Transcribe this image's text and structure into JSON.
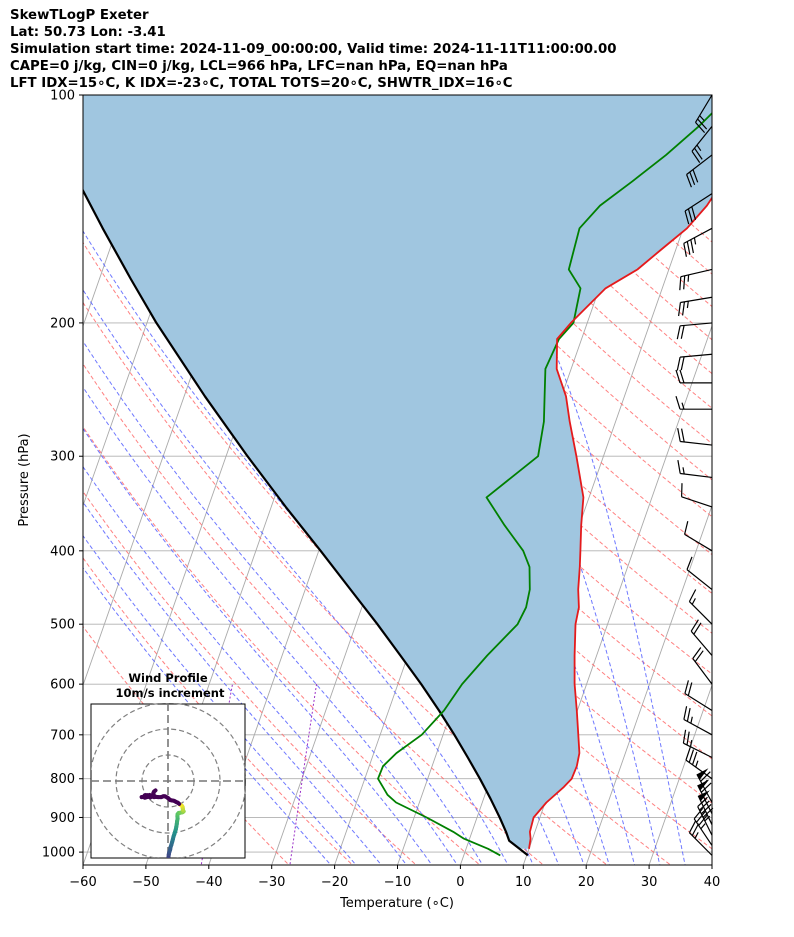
{
  "header": {
    "line1": "SkewTLogP Exeter",
    "line2": "Lat: 50.73   Lon: -3.41",
    "line3": "Simulation start time: 2024-11-09_00:00:00, Valid time: 2024-11-11T11:00:00.00",
    "line4": "CAPE=0 j/kg, CIN=0 j/kg, LCL=966 hPa, LFC=nan hPa, EQ=nan hPa",
    "line5": "LFT IDX=15∘C, K IDX=-23∘C, TOTAL TOTS=20∘C, SHWTR_IDX=16∘C"
  },
  "colors": {
    "temperature": "#e41a1c",
    "dewpoint": "#008000",
    "parcel": "#000000",
    "cape_fill": "#a0c6e0",
    "dry_adiabat": "#ff6b6b",
    "moist_adiabat": "#5560ff",
    "mixing_ratio": "#9b30c8",
    "isotherm": "#aaaaaa"
  },
  "chart_data": {
    "type": "line",
    "title": "SkewTLogP Exeter",
    "xlabel": "Temperature (∘C)",
    "ylabel": "Pressure (hPa)",
    "xlim": [
      -60,
      40
    ],
    "ylim": [
      1040,
      100
    ],
    "x_ticks": [
      "−60",
      "−50",
      "−40",
      "−30",
      "−20",
      "−10",
      "0",
      "10",
      "20",
      "30",
      "40"
    ],
    "x_tick_values": [
      -60,
      -50,
      -40,
      -30,
      -20,
      -10,
      0,
      10,
      20,
      30,
      40
    ],
    "y_ticks": [
      "100",
      "200",
      "300",
      "400",
      "500",
      "600",
      "700",
      "800",
      "900",
      "1000"
    ],
    "y_tick_values": [
      100,
      200,
      300,
      400,
      500,
      600,
      700,
      800,
      900,
      1000
    ],
    "grid": true,
    "series": [
      {
        "name": "Temperature",
        "p": [
          990,
          960,
          940,
          900,
          860,
          820,
          800,
          770,
          740,
          700,
          650,
          600,
          550,
          500,
          475,
          450,
          420,
          400,
          370,
          340,
          300,
          270,
          250,
          230,
          210,
          200,
          180,
          170,
          160,
          150,
          140,
          130,
          120,
          110,
          100
        ],
        "t": [
          10,
          9.7,
          9.2,
          9.0,
          10.2,
          12.1,
          12.9,
          13.0,
          12.7,
          11.5,
          9.9,
          8.1,
          6.5,
          4.9,
          4.5,
          3.4,
          2.4,
          1.6,
          0.3,
          -0.9,
          -4.3,
          -7.3,
          -9.3,
          -12.3,
          -13.9,
          -12.6,
          -9.0,
          -5.0,
          -2.3,
          0.6,
          2.5,
          3.7,
          4.0,
          3.9,
          4.7
        ]
      },
      {
        "name": "Dewpoint",
        "p": [
          1010,
          990,
          960,
          940,
          900,
          860,
          840,
          800,
          770,
          740,
          700,
          650,
          600,
          550,
          500,
          475,
          450,
          420,
          400,
          370,
          340,
          300,
          270,
          250,
          230,
          210,
          200,
          180,
          170,
          150,
          140,
          130,
          120,
          110,
          100
        ],
        "t": [
          5.8,
          3.5,
          -0.9,
          -3.0,
          -8.0,
          -13.7,
          -15.5,
          -17.9,
          -17.8,
          -16.4,
          -13.4,
          -11.2,
          -9.8,
          -7.4,
          -4.3,
          -3.9,
          -4.3,
          -5.6,
          -7.5,
          -11.9,
          -16.3,
          -10.4,
          -11.4,
          -12.7,
          -14.1,
          -13.6,
          -12.2,
          -13.0,
          -15.9,
          -16.5,
          -14.5,
          -10.7,
          -6.8,
          -3.2,
          0.1
        ]
      },
      {
        "name": "Parcel profile",
        "p": [
          1010,
          990,
          966,
          940,
          900,
          850,
          800,
          750,
          700,
          650,
          600,
          550,
          500,
          450,
          400,
          350,
          300,
          250,
          200,
          175,
          150,
          125,
          100
        ],
        "t": [
          10.2,
          8.5,
          6.4,
          5.4,
          3.6,
          1.1,
          -1.7,
          -4.8,
          -8.2,
          -12.0,
          -16.3,
          -21.2,
          -26.6,
          -32.8,
          -39.7,
          -47.7,
          -56.6,
          -66.7,
          -78.5,
          -85.0,
          -92.3,
          -100.6,
          -110.3
        ]
      }
    ],
    "wind_barbs": {
      "p": [
        1010,
        980,
        950,
        920,
        890,
        860,
        800,
        750,
        700,
        650,
        600,
        550,
        500,
        450,
        400,
        350,
        320,
        290,
        260,
        240,
        220,
        200,
        185,
        170,
        150,
        135,
        120,
        110,
        100
      ],
      "u": [
        -10,
        -10,
        -10,
        -12,
        -14,
        -16,
        -14,
        -12,
        -11,
        -8,
        -6,
        -6,
        -6,
        -5,
        -5,
        -6,
        -8,
        -9,
        -9,
        -10,
        -11,
        -11,
        -12,
        -13,
        -15,
        -14,
        -13,
        -8,
        -6
      ],
      "v": [
        10,
        15,
        20,
        25,
        28,
        30,
        10,
        6,
        6,
        5,
        8,
        7,
        6,
        4,
        3,
        2,
        1,
        1,
        0,
        0,
        -1,
        -1,
        -2,
        -3,
        -8,
        -9,
        -10,
        -10,
        -10
      ]
    },
    "hodograph": {
      "title": "Wind Profile",
      "subtitle": "10m/s increment",
      "rings_ms": [
        10,
        20,
        30
      ],
      "points_u": [
        0.2,
        0.3,
        0.5,
        0.8,
        1.0,
        1.3,
        1.6,
        1.9,
        2.1,
        2.4,
        2.7,
        3.0,
        3.2,
        3.4,
        3.5,
        3.7,
        3.6,
        3.7,
        4.1,
        4.8,
        5.6,
        6.0,
        5.8,
        5.7,
        5.6,
        5.3,
        4.8,
        4.3,
        3.8,
        3.0,
        2.3,
        1.6,
        0.8,
        0.2,
        -0.4,
        -1.2,
        -1.8,
        -2.6,
        -3.8,
        -4.5,
        -4.9,
        -5.4,
        -6.1,
        -6.8,
        -7.3,
        -7.8,
        -8.6,
        -9.1,
        -9.0,
        -9.3,
        -8.9,
        -8.8,
        -9.2,
        -10.1,
        -8.8,
        -8.5,
        -8.0,
        -7.6,
        -7.1,
        -6.3,
        -5.5,
        -5.6,
        -5.3,
        -4.8
      ],
      "points_v": [
        -29.1,
        -28.2,
        -27.3,
        -26.5,
        -25.4,
        -24.5,
        -23.4,
        -22.4,
        -21.4,
        -20.6,
        -19.6,
        -18.6,
        -17.6,
        -16.5,
        -15.5,
        -14.5,
        -13.5,
        -12.8,
        -12.3,
        -12.2,
        -12.0,
        -11.7,
        -11.3,
        -10.7,
        -10.0,
        -9.5,
        -9.2,
        -8.8,
        -8.4,
        -8.0,
        -7.6,
        -7.5,
        -7.3,
        -6.7,
        -6.3,
        -5.9,
        -5.9,
        -6.2,
        -6.2,
        -6.1,
        -6.1,
        -6.2,
        -6.0,
        -6.3,
        -6.0,
        -6.1,
        -6.3,
        -6.1,
        -6.4,
        -6.2,
        -5.5,
        -6.4,
        -6.0,
        -6.2,
        -6.0,
        -5.5,
        -5.5,
        -5.8,
        -5.4,
        -5.6,
        -5.3,
        -4.6,
        -4.0,
        -3.6
      ]
    }
  }
}
